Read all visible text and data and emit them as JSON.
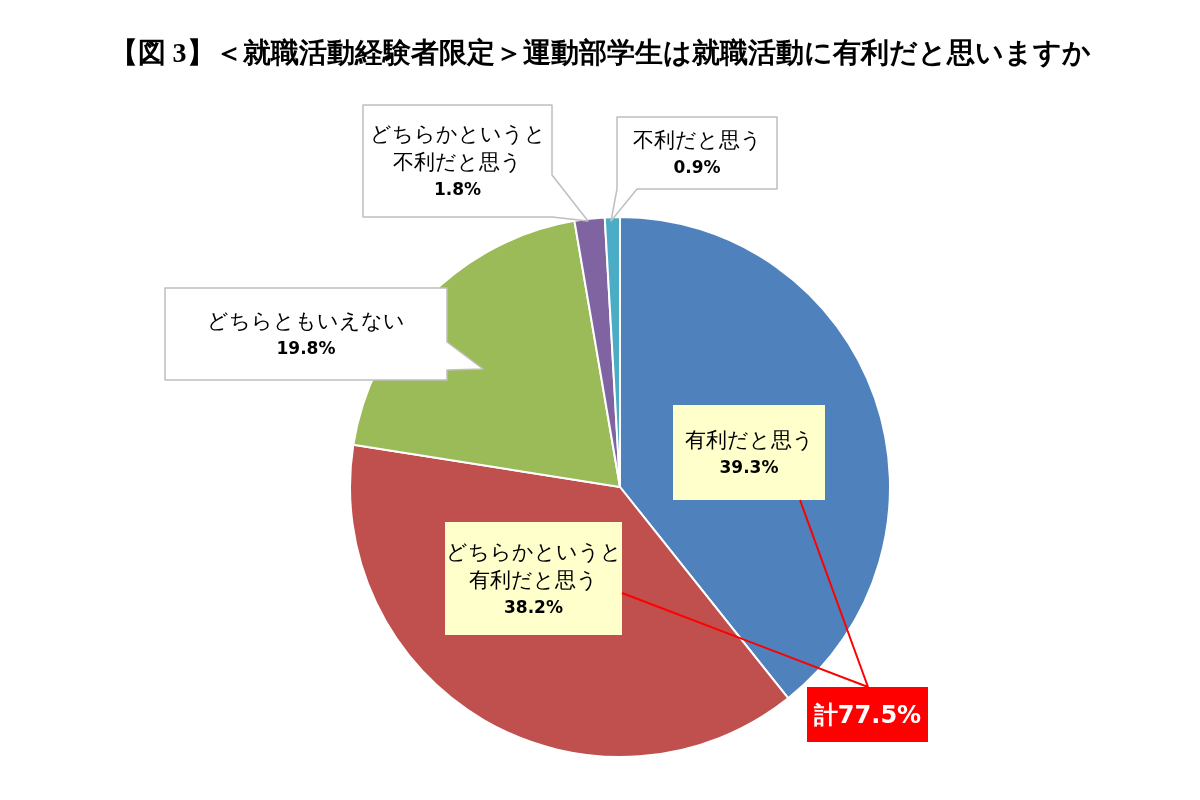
{
  "chart_data": {
    "type": "pie",
    "title": "【図 3】＜就職活動経験者限定＞運動部学生は就職活動に有利だと思いますか",
    "categories": [
      "有利だと思う",
      "どちらかというと有利だと思う",
      "どちらともいえない",
      "どちらかというと不利だと思う",
      "不利だと思う"
    ],
    "values": [
      39.3,
      38.2,
      19.8,
      1.8,
      0.9
    ],
    "colors": [
      "#4f81bd",
      "#c0504d",
      "#9bbb59",
      "#8064a2",
      "#4bacc6"
    ],
    "value_labels": [
      "39.3%",
      "38.2%",
      "19.8%",
      "1.8%",
      "0.9%"
    ],
    "annotations": [
      "計77.5%"
    ]
  }
}
